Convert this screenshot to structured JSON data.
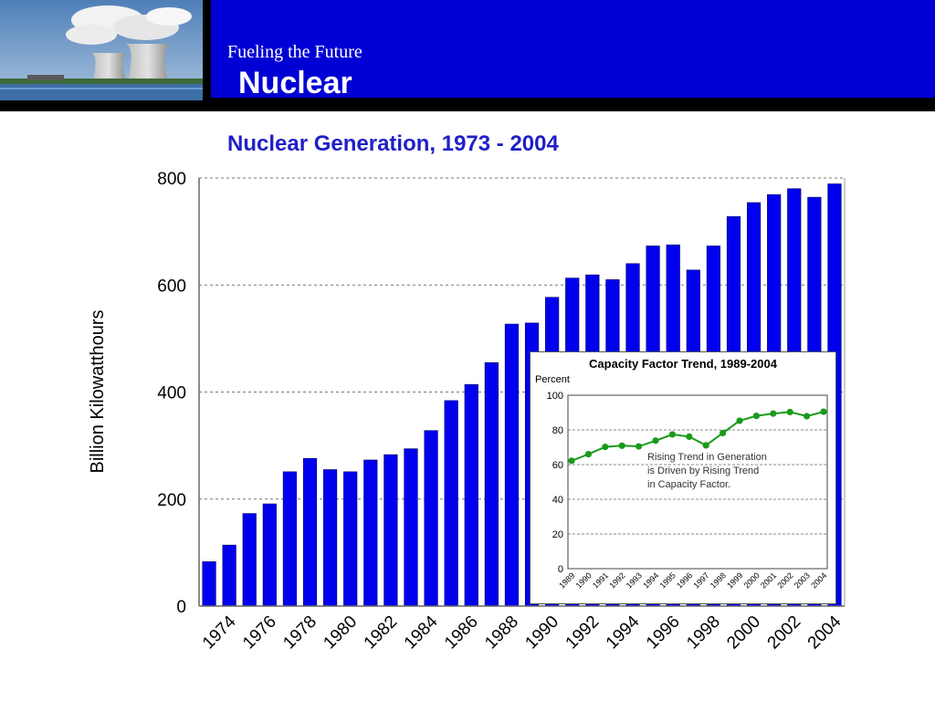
{
  "slide": {
    "subtitle": "Fueling the Future",
    "title": "Nuclear"
  },
  "colors": {
    "banner": "#0000d4",
    "bar": "#0000ee",
    "line": "#1a9a1a",
    "chart_title": "#1f1fc8"
  },
  "photo": {
    "icon": "nuclear-cooling-towers-photo"
  },
  "chart_data": [
    {
      "type": "bar",
      "title": "Nuclear Generation, 1973 - 2004",
      "xlabel": "",
      "ylabel": "Billion Kilowatthours",
      "ylim": [
        0,
        800
      ],
      "yticks": [
        "0",
        "200",
        "400",
        "600",
        "800"
      ],
      "grid": true,
      "xtick_labels": [
        "1974",
        "1976",
        "1978",
        "1980",
        "1982",
        "1984",
        "1986",
        "1988",
        "1990",
        "1992",
        "1994",
        "1996",
        "1998",
        "2000",
        "2002",
        "2004"
      ],
      "categories": [
        "1973",
        "1974",
        "1975",
        "1976",
        "1977",
        "1978",
        "1979",
        "1980",
        "1981",
        "1982",
        "1983",
        "1984",
        "1985",
        "1986",
        "1987",
        "1988",
        "1989",
        "1990",
        "1991",
        "1992",
        "1993",
        "1994",
        "1995",
        "1996",
        "1997",
        "1998",
        "1999",
        "2000",
        "2001",
        "2002",
        "2003",
        "2004"
      ],
      "values": [
        83,
        114,
        173,
        191,
        251,
        276,
        255,
        251,
        273,
        283,
        294,
        328,
        384,
        414,
        455,
        527,
        529,
        577,
        613,
        619,
        610,
        640,
        673,
        675,
        628,
        673,
        728,
        754,
        769,
        780,
        764,
        789
      ]
    },
    {
      "type": "line",
      "title": "Capacity Factor Trend, 1989-2004",
      "ylabel": "Percent",
      "ylim": [
        0,
        100
      ],
      "yticks": [
        "0",
        "20",
        "40",
        "60",
        "80",
        "100"
      ],
      "grid": true,
      "categories": [
        "1989",
        "1990",
        "1991",
        "1992",
        "1993",
        "1994",
        "1995",
        "1996",
        "1997",
        "1998",
        "1999",
        "2000",
        "2001",
        "2002",
        "2003",
        "2004"
      ],
      "values": [
        62.2,
        66.0,
        70.2,
        70.9,
        70.5,
        73.8,
        77.4,
        76.1,
        71.1,
        78.2,
        85.3,
        88.1,
        89.4,
        90.3,
        87.9,
        90.5
      ],
      "annotation": [
        "Rising Trend in Generation",
        "is Driven by Rising Trend",
        "in Capacity Factor."
      ]
    }
  ]
}
